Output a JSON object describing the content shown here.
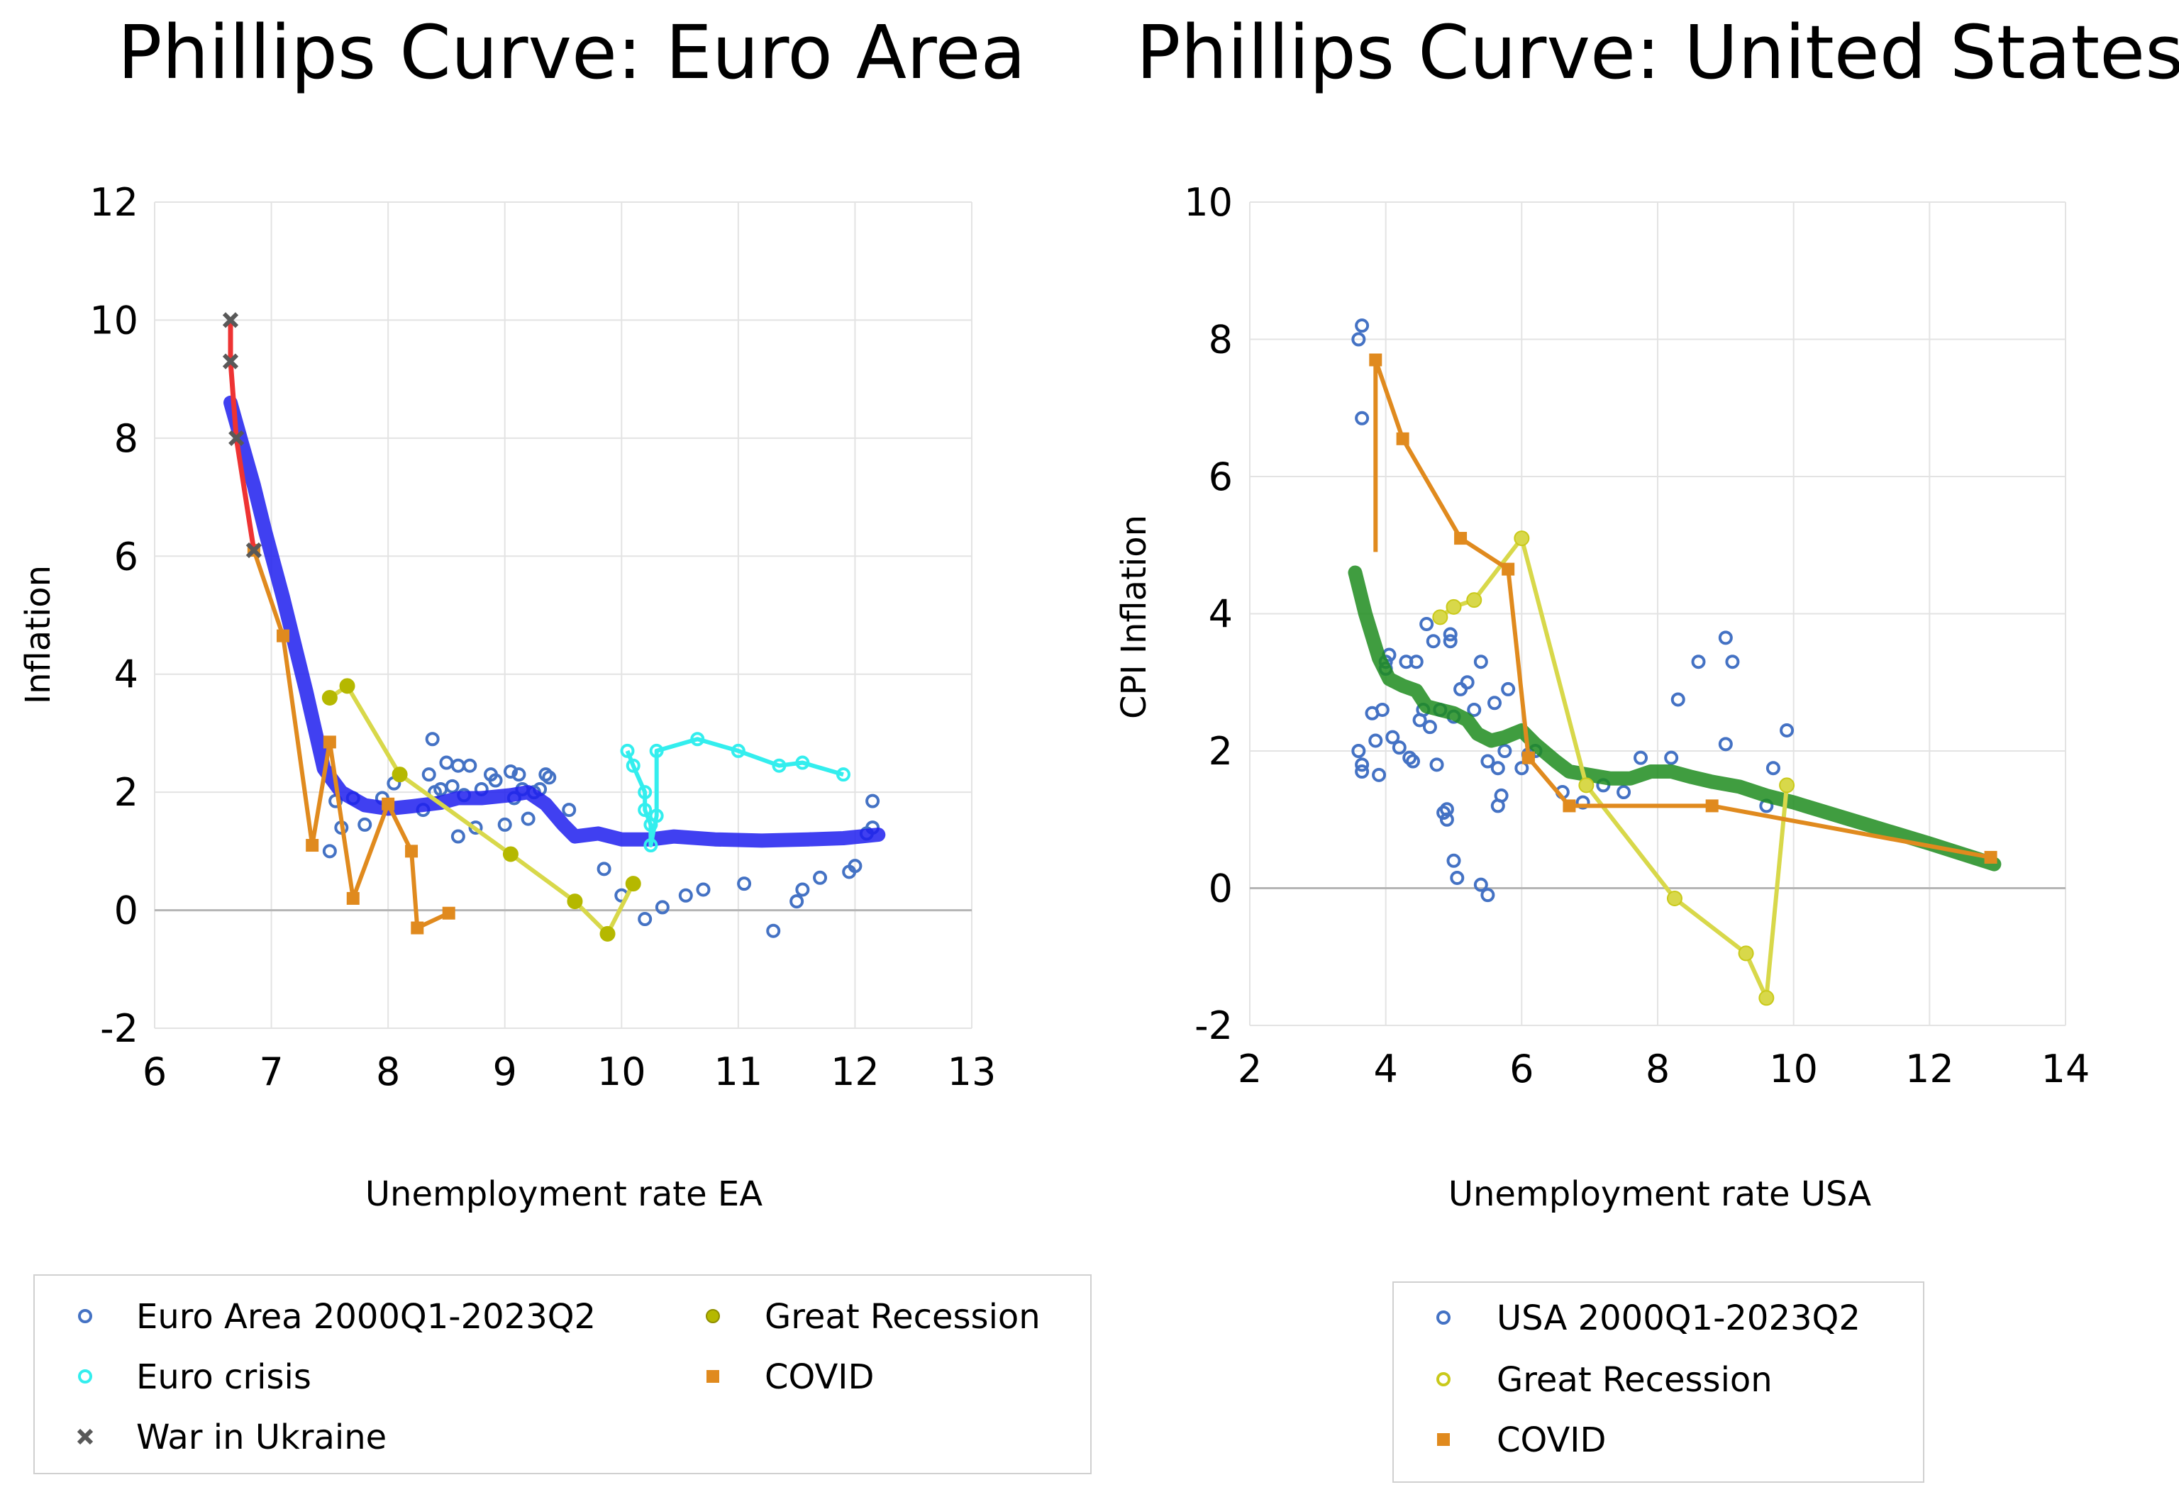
{
  "chart_data": [
    {
      "type": "scatter",
      "title": "Phillips Curve: Euro Area",
      "xlabel": "Unemployment rate EA",
      "ylabel": "Inflation",
      "xlim": [
        6,
        13
      ],
      "ylim": [
        -2,
        12
      ],
      "xticks": [
        "6",
        "7",
        "8",
        "9",
        "10",
        "11",
        "12",
        "13"
      ],
      "yticks": [
        "-2",
        "0",
        "2",
        "4",
        "6",
        "8",
        "10",
        "12"
      ],
      "grid": true,
      "legend_placement": "bottom",
      "colors": {
        "scatter": "#4472c4",
        "euro_crisis": "#33eeee",
        "war": "#595959",
        "war_line": "#ee3333",
        "great_recession": "#b5b800",
        "great_recession_line": "#d8d84a",
        "covid": "#e08a1e",
        "trend": "#1f1fee"
      },
      "legend": {
        "scatter": "Euro Area 2000Q1-2023Q2",
        "euro_crisis": "Euro crisis",
        "war": "War in Ukraine",
        "great_recession": "Great Recession",
        "covid": "COVID"
      },
      "series": {
        "scatter": [
          [
            7.5,
            1.0
          ],
          [
            7.55,
            1.85
          ],
          [
            7.6,
            1.4
          ],
          [
            7.7,
            1.9
          ],
          [
            7.8,
            1.45
          ],
          [
            7.95,
            1.9
          ],
          [
            8.05,
            2.15
          ],
          [
            8.3,
            1.7
          ],
          [
            8.35,
            2.3
          ],
          [
            8.38,
            2.9
          ],
          [
            8.4,
            2.0
          ],
          [
            8.45,
            2.05
          ],
          [
            8.5,
            2.5
          ],
          [
            8.55,
            2.1
          ],
          [
            8.6,
            2.45
          ],
          [
            8.6,
            1.25
          ],
          [
            8.65,
            1.95
          ],
          [
            8.7,
            2.45
          ],
          [
            8.75,
            1.4
          ],
          [
            8.8,
            2.05
          ],
          [
            8.88,
            2.3
          ],
          [
            8.92,
            2.2
          ],
          [
            9.0,
            1.45
          ],
          [
            9.05,
            2.35
          ],
          [
            9.08,
            1.9
          ],
          [
            9.12,
            2.3
          ],
          [
            9.15,
            2.05
          ],
          [
            9.2,
            1.55
          ],
          [
            9.25,
            2.0
          ],
          [
            9.3,
            2.05
          ],
          [
            9.35,
            2.3
          ],
          [
            9.38,
            2.25
          ],
          [
            9.55,
            1.7
          ],
          [
            9.85,
            0.7
          ],
          [
            10.0,
            0.25
          ],
          [
            10.2,
            -0.15
          ],
          [
            10.35,
            0.05
          ],
          [
            10.55,
            0.25
          ],
          [
            10.7,
            0.35
          ],
          [
            11.05,
            0.45
          ],
          [
            11.3,
            -0.35
          ],
          [
            11.5,
            0.15
          ],
          [
            11.55,
            0.35
          ],
          [
            11.7,
            0.55
          ],
          [
            11.95,
            0.65
          ],
          [
            12.0,
            0.75
          ],
          [
            12.1,
            1.3
          ],
          [
            12.15,
            1.4
          ],
          [
            12.15,
            1.85
          ]
        ],
        "euro_crisis": [
          [
            10.05,
            2.7
          ],
          [
            10.1,
            2.45
          ],
          [
            10.2,
            2.0
          ],
          [
            10.2,
            1.7
          ],
          [
            10.25,
            1.45
          ],
          [
            10.25,
            1.1
          ],
          [
            10.3,
            1.6
          ],
          [
            10.3,
            2.7
          ],
          [
            10.65,
            2.9
          ],
          [
            11.0,
            2.7
          ],
          [
            11.35,
            2.45
          ],
          [
            11.55,
            2.5
          ],
          [
            11.9,
            2.3
          ]
        ],
        "war": [
          [
            6.65,
            10.0
          ],
          [
            6.65,
            9.3
          ],
          [
            6.7,
            8.0
          ],
          [
            6.85,
            6.1
          ]
        ],
        "great_recession": [
          [
            7.5,
            3.6
          ],
          [
            7.65,
            3.8
          ],
          [
            8.1,
            2.3
          ],
          [
            9.05,
            0.95
          ],
          [
            9.6,
            0.15
          ],
          [
            9.88,
            -0.4
          ],
          [
            10.1,
            0.45
          ]
        ],
        "covid": [
          [
            6.85,
            6.1
          ],
          [
            7.1,
            4.65
          ],
          [
            7.35,
            1.1
          ],
          [
            7.5,
            2.85
          ],
          [
            7.7,
            0.2
          ],
          [
            8.0,
            1.8
          ],
          [
            8.2,
            1.0
          ],
          [
            8.25,
            -0.3
          ],
          [
            8.52,
            -0.05
          ]
        ],
        "trend": [
          [
            6.65,
            8.6
          ],
          [
            6.75,
            7.9
          ],
          [
            6.85,
            7.2
          ],
          [
            6.95,
            6.4
          ],
          [
            7.1,
            5.3
          ],
          [
            7.3,
            3.7
          ],
          [
            7.45,
            2.4
          ],
          [
            7.6,
            2.0
          ],
          [
            7.8,
            1.78
          ],
          [
            8.0,
            1.72
          ],
          [
            8.2,
            1.76
          ],
          [
            8.45,
            1.82
          ],
          [
            8.6,
            1.9
          ],
          [
            8.8,
            1.9
          ],
          [
            9.05,
            1.95
          ],
          [
            9.2,
            2.0
          ],
          [
            9.35,
            1.8
          ],
          [
            9.5,
            1.45
          ],
          [
            9.6,
            1.25
          ],
          [
            9.8,
            1.3
          ],
          [
            10.0,
            1.2
          ],
          [
            10.25,
            1.2
          ],
          [
            10.45,
            1.25
          ],
          [
            10.8,
            1.2
          ],
          [
            11.2,
            1.18
          ],
          [
            11.6,
            1.2
          ],
          [
            11.9,
            1.22
          ],
          [
            12.2,
            1.28
          ]
        ]
      }
    },
    {
      "type": "scatter",
      "title": "Phillips Curve: United States",
      "xlabel": "Unemployment rate USA",
      "ylabel": "CPI Inflation",
      "xlim": [
        2,
        14
      ],
      "ylim": [
        -2,
        10
      ],
      "xticks": [
        "2",
        "4",
        "6",
        "8",
        "10",
        "12",
        "14"
      ],
      "yticks": [
        "-2",
        "0",
        "2",
        "4",
        "6",
        "8",
        "10"
      ],
      "grid": true,
      "legend_placement": "bottom",
      "colors": {
        "scatter": "#4472c4",
        "great_recession": "#c9c91a",
        "great_recession_line": "#d8d84a",
        "covid": "#e08a1e",
        "trend": "#1e8c1e"
      },
      "legend": {
        "scatter": "USA 2000Q1-2023Q2",
        "great_recession": "Great Recession",
        "covid": "COVID"
      },
      "series": {
        "scatter": [
          [
            3.6,
            8.0
          ],
          [
            3.65,
            8.2
          ],
          [
            3.65,
            6.85
          ],
          [
            3.6,
            2.0
          ],
          [
            3.65,
            1.8
          ],
          [
            3.65,
            1.7
          ],
          [
            3.8,
            2.55
          ],
          [
            3.85,
            2.15
          ],
          [
            3.9,
            1.65
          ],
          [
            3.95,
            2.6
          ],
          [
            4.0,
            3.3
          ],
          [
            4.05,
            3.4
          ],
          [
            4.0,
            3.2
          ],
          [
            4.1,
            2.2
          ],
          [
            4.2,
            2.05
          ],
          [
            4.3,
            3.3
          ],
          [
            4.35,
            1.9
          ],
          [
            4.4,
            1.85
          ],
          [
            4.45,
            3.3
          ],
          [
            4.5,
            2.45
          ],
          [
            4.55,
            2.6
          ],
          [
            4.6,
            3.85
          ],
          [
            4.65,
            2.35
          ],
          [
            4.7,
            3.6
          ],
          [
            4.75,
            1.8
          ],
          [
            4.8,
            2.6
          ],
          [
            4.85,
            1.1
          ],
          [
            4.9,
            1.15
          ],
          [
            4.9,
            1.0
          ],
          [
            4.95,
            3.7
          ],
          [
            4.95,
            3.6
          ],
          [
            5.0,
            2.5
          ],
          [
            5.0,
            0.4
          ],
          [
            5.05,
            0.15
          ],
          [
            5.1,
            2.9
          ],
          [
            5.2,
            3.0
          ],
          [
            5.3,
            2.6
          ],
          [
            5.4,
            3.3
          ],
          [
            5.4,
            0.05
          ],
          [
            5.5,
            1.85
          ],
          [
            5.5,
            -0.1
          ],
          [
            5.6,
            2.7
          ],
          [
            5.65,
            1.75
          ],
          [
            5.65,
            1.2
          ],
          [
            5.7,
            1.35
          ],
          [
            5.75,
            2.0
          ],
          [
            5.8,
            2.9
          ],
          [
            6.0,
            1.75
          ],
          [
            6.1,
            1.95
          ],
          [
            6.2,
            2.0
          ],
          [
            6.6,
            1.4
          ],
          [
            6.9,
            1.25
          ],
          [
            7.2,
            1.5
          ],
          [
            7.5,
            1.4
          ],
          [
            7.75,
            1.9
          ],
          [
            8.2,
            1.9
          ],
          [
            8.3,
            2.75
          ],
          [
            8.6,
            3.3
          ],
          [
            9.0,
            3.65
          ],
          [
            9.1,
            3.3
          ],
          [
            9.0,
            2.1
          ],
          [
            9.6,
            1.2
          ],
          [
            9.7,
            1.75
          ],
          [
            9.9,
            2.3
          ]
        ],
        "great_recession": [
          [
            4.8,
            3.95
          ],
          [
            5.0,
            4.1
          ],
          [
            5.3,
            4.2
          ],
          [
            6.0,
            5.1
          ],
          [
            6.95,
            1.5
          ],
          [
            8.25,
            -0.15
          ],
          [
            9.3,
            -0.95
          ],
          [
            9.6,
            -1.6
          ],
          [
            9.9,
            1.5
          ]
        ],
        "covid": [
          [
            3.85,
            4.9
          ],
          [
            3.85,
            7.7
          ],
          [
            4.25,
            6.55
          ],
          [
            5.1,
            5.1
          ],
          [
            5.8,
            4.65
          ],
          [
            6.1,
            1.9
          ],
          [
            6.7,
            1.2
          ],
          [
            8.8,
            1.2
          ],
          [
            12.9,
            0.45
          ]
        ],
        "trend": [
          [
            3.55,
            4.6
          ],
          [
            3.7,
            4.0
          ],
          [
            3.9,
            3.35
          ],
          [
            4.05,
            3.05
          ],
          [
            4.25,
            2.95
          ],
          [
            4.45,
            2.88
          ],
          [
            4.6,
            2.65
          ],
          [
            4.8,
            2.6
          ],
          [
            5.0,
            2.55
          ],
          [
            5.2,
            2.45
          ],
          [
            5.35,
            2.25
          ],
          [
            5.55,
            2.15
          ],
          [
            5.75,
            2.2
          ],
          [
            6.0,
            2.3
          ],
          [
            6.2,
            2.1
          ],
          [
            6.5,
            1.85
          ],
          [
            6.7,
            1.7
          ],
          [
            7.0,
            1.65
          ],
          [
            7.3,
            1.6
          ],
          [
            7.6,
            1.6
          ],
          [
            7.9,
            1.7
          ],
          [
            8.2,
            1.7
          ],
          [
            8.5,
            1.62
          ],
          [
            8.8,
            1.55
          ],
          [
            9.2,
            1.48
          ],
          [
            9.6,
            1.35
          ],
          [
            10.0,
            1.25
          ],
          [
            11.0,
            0.95
          ],
          [
            12.0,
            0.65
          ],
          [
            12.95,
            0.35
          ]
        ]
      }
    }
  ]
}
